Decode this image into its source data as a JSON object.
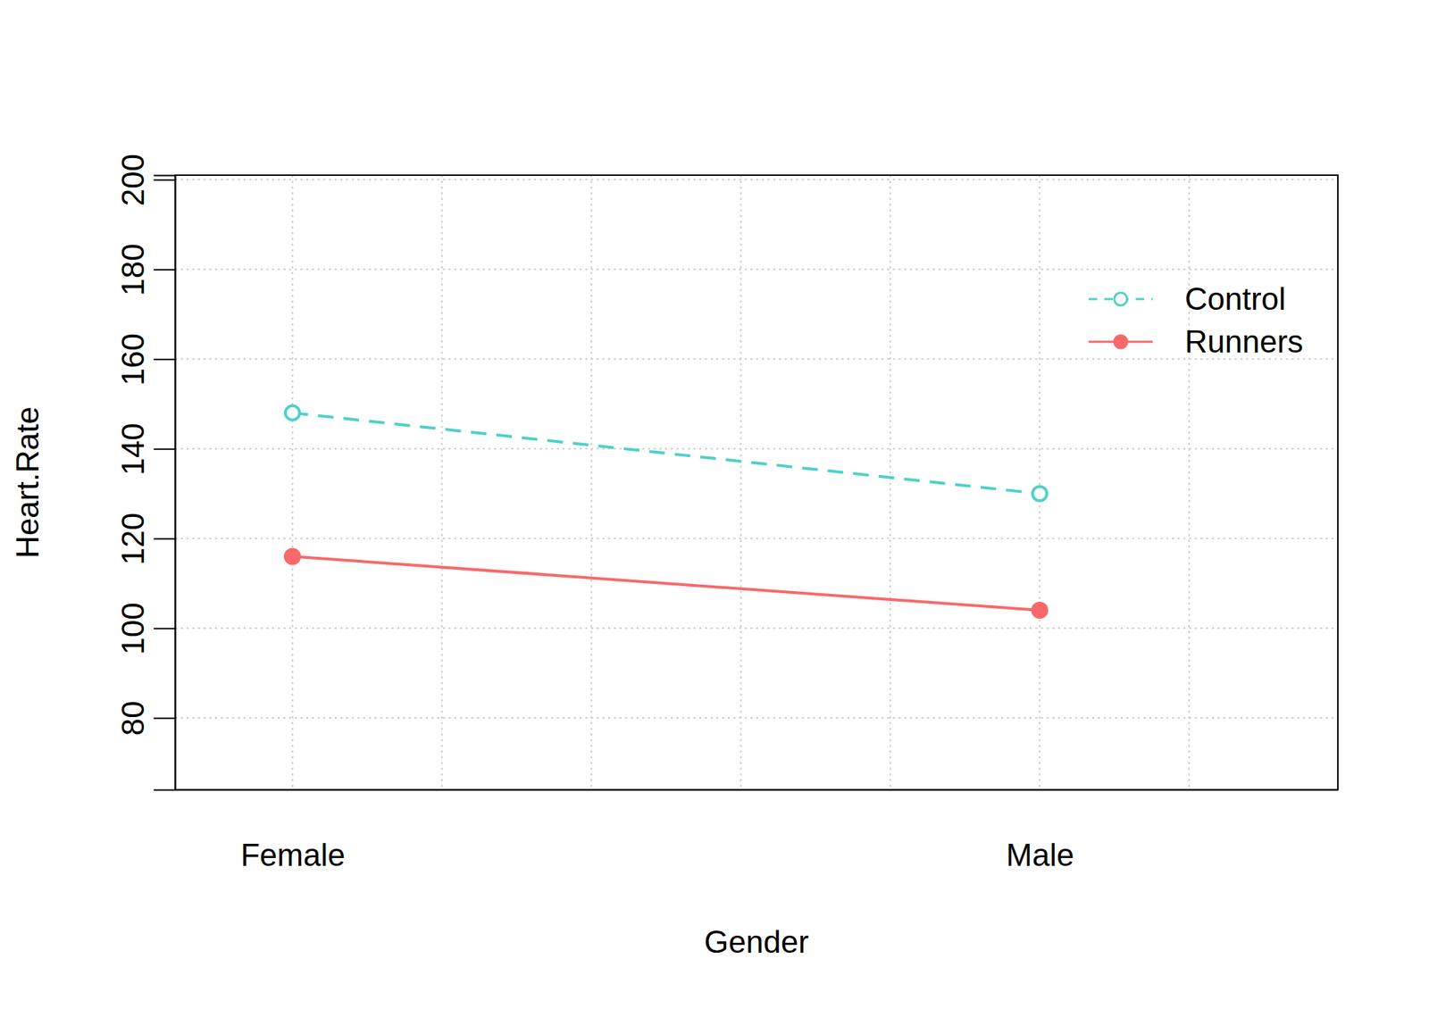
{
  "chart_data": {
    "type": "line",
    "x_label": "Gender",
    "y_label": "Heart.Rate",
    "categories": [
      "Female",
      "Male"
    ],
    "series": [
      {
        "name": "Control",
        "color": "#4fd1c5",
        "marker": "open_circle",
        "line_style": "dashed",
        "values": [
          148,
          130
        ]
      },
      {
        "name": "Runners",
        "color": "#f8696b",
        "marker": "filled_circle",
        "line_style": "solid",
        "values": [
          116,
          104
        ]
      }
    ],
    "ylim": [
      64,
      201
    ],
    "yticks": [
      80,
      100,
      120,
      140,
      160,
      180,
      200
    ],
    "grid": true,
    "legend": "upper right"
  }
}
